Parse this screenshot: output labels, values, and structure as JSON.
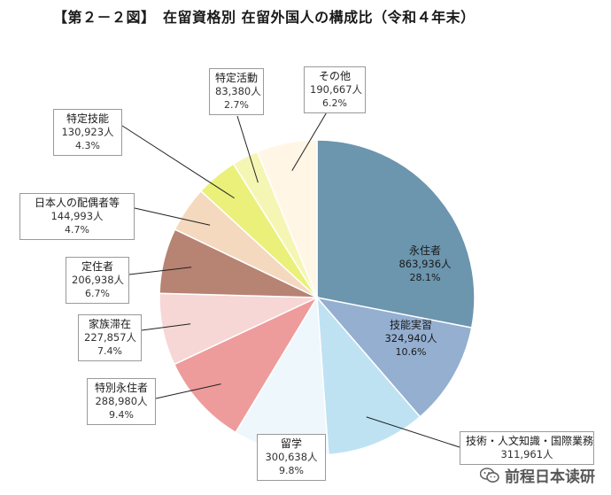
{
  "title": "【第２－２図】　在留資格別 在留外国人の構成比（令和４年末）",
  "chart_data": {
    "type": "pie",
    "start_angle_deg": 0,
    "direction": "clockwise",
    "slices": [
      {
        "label": "永住者",
        "count": "863,936人",
        "percent": 28.1,
        "percent_text": "28.1%",
        "color": "#6c95ae"
      },
      {
        "label": "技能実習",
        "count": "324,940人",
        "percent": 10.6,
        "percent_text": "10.6%",
        "color": "#94afd0"
      },
      {
        "label": "技術・人文知識・国際業務",
        "count": "311,961人",
        "percent": 10.2,
        "percent_text": "",
        "color": "#bfe2f3"
      },
      {
        "label": "留学",
        "count": "300,638人",
        "percent": 9.8,
        "percent_text": "9.8%",
        "color": "#eef7fb"
      },
      {
        "label": "特別永住者",
        "count": "288,980人",
        "percent": 9.4,
        "percent_text": "9.4%",
        "color": "#ee9b9b"
      },
      {
        "label": "家族滞在",
        "count": "227,857人",
        "percent": 7.4,
        "percent_text": "7.4%",
        "color": "#f7d6d6"
      },
      {
        "label": "定住者",
        "count": "206,938人",
        "percent": 6.7,
        "percent_text": "6.7%",
        "color": "#b78373"
      },
      {
        "label": "日本人の配偶者等",
        "count": "144,993人",
        "percent": 4.7,
        "percent_text": "4.7%",
        "color": "#f4d9bf"
      },
      {
        "label": "特定技能",
        "count": "130,923人",
        "percent": 4.3,
        "percent_text": "4.3%",
        "color": "#eaf07a"
      },
      {
        "label": "特定活動",
        "count": "83,380人",
        "percent": 2.7,
        "percent_text": "2.7%",
        "color": "#f5f6b4"
      },
      {
        "label": "その他",
        "count": "190,667人",
        "percent": 6.2,
        "percent_text": "6.2%",
        "color": "#fff6e6"
      }
    ]
  },
  "watermark": {
    "text": "前程日本读研",
    "icon": "wechat-icon"
  }
}
